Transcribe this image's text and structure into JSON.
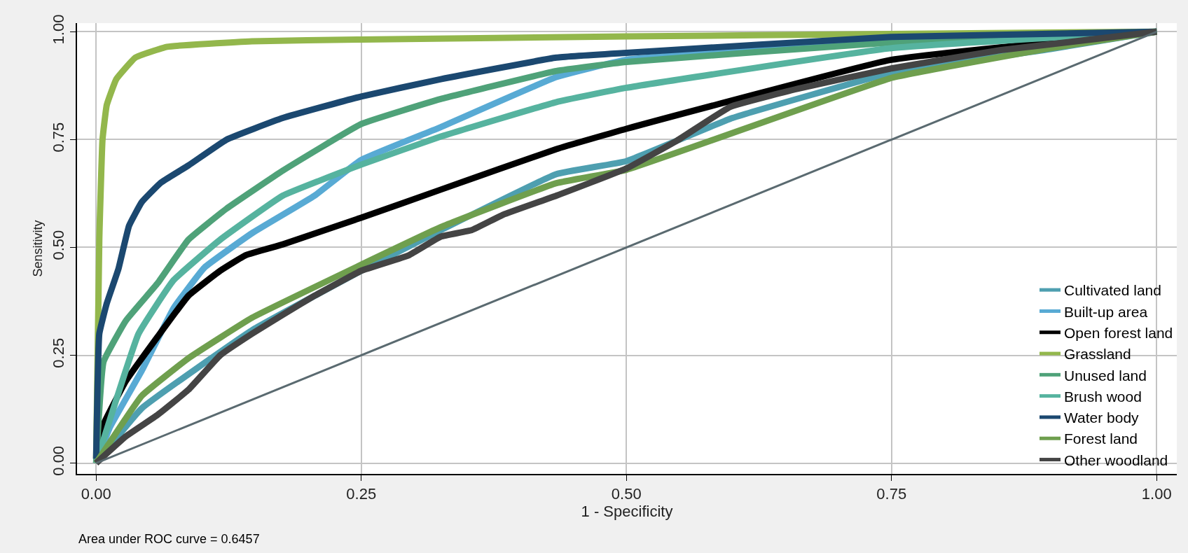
{
  "chart_data": {
    "type": "line",
    "xlabel": "1 - Specificity",
    "ylabel": "Sensitivity",
    "annotations": [
      "Area under ROC curve = 0.6457"
    ],
    "xlim": [
      -0.018,
      1.019
    ],
    "ylim": [
      -0.025,
      1.02
    ],
    "xticks": [
      {
        "value": 0,
        "label": "0.00"
      },
      0.25,
      {
        "value": 0.5,
        "label": "0.50"
      },
      0.75,
      {
        "value": 1,
        "label": "1.00"
      }
    ],
    "yticks": [
      {
        "value": 0,
        "label": "0.00"
      },
      0.25,
      {
        "value": 0.5,
        "label": "0.50"
      },
      0.75,
      {
        "value": 1,
        "label": "1.00"
      }
    ],
    "grid": true,
    "legend": "bottom right",
    "series": [
      {
        "name": "Cultivated land",
        "color": "#4e9fb0",
        "x": [
          0,
          0.043,
          0.147,
          0.25,
          0.325,
          0.434,
          0.5,
          0.6,
          0.75,
          0.9,
          1
        ],
        "values": [
          0,
          0.127,
          0.308,
          0.446,
          0.54,
          0.67,
          0.7,
          0.8,
          0.905,
          0.96,
          1
        ]
      },
      {
        "name": "Built-up area",
        "color": "#58aad4",
        "x": [
          0,
          0.013,
          0.043,
          0.073,
          0.102,
          0.147,
          0.206,
          0.25,
          0.325,
          0.434,
          0.5,
          0.75,
          1
        ],
        "values": [
          0,
          0.083,
          0.214,
          0.359,
          0.453,
          0.533,
          0.62,
          0.703,
          0.779,
          0.895,
          0.935,
          0.978,
          1
        ]
      },
      {
        "name": "Open forest land",
        "color": "#000000",
        "x": [
          0,
          0.007,
          0.028,
          0.058,
          0.087,
          0.117,
          0.141,
          0.176,
          0.25,
          0.325,
          0.434,
          0.5,
          0.75,
          1
        ],
        "values": [
          0,
          0.09,
          0.19,
          0.293,
          0.388,
          0.446,
          0.482,
          0.507,
          0.569,
          0.634,
          0.728,
          0.775,
          0.935,
          1
        ]
      },
      {
        "name": "Grassland",
        "color": "#93b74c",
        "x": [
          0,
          0.003,
          0.006,
          0.01,
          0.019,
          0.037,
          0.067,
          0.147,
          0.25,
          0.5,
          0.75,
          1
        ],
        "values": [
          0.01,
          0.52,
          0.75,
          0.83,
          0.89,
          0.94,
          0.965,
          0.978,
          0.982,
          0.989,
          0.995,
          1
        ]
      },
      {
        "name": "Unused land",
        "color": "#4fa279",
        "x": [
          0,
          0.007,
          0.028,
          0.058,
          0.087,
          0.123,
          0.176,
          0.25,
          0.325,
          0.434,
          0.5,
          0.75,
          1
        ],
        "values": [
          0,
          0.235,
          0.33,
          0.417,
          0.518,
          0.59,
          0.678,
          0.786,
          0.844,
          0.909,
          0.93,
          0.975,
          1
        ]
      },
      {
        "name": "Brush wood",
        "color": "#56b39f",
        "x": [
          0,
          0.04,
          0.073,
          0.117,
          0.176,
          0.25,
          0.325,
          0.434,
          0.5,
          0.75,
          1
        ],
        "values": [
          0,
          0.3,
          0.424,
          0.518,
          0.62,
          0.692,
          0.757,
          0.837,
          0.87,
          0.962,
          1
        ]
      },
      {
        "name": "Water body",
        "color": "#1b4870",
        "x": [
          0,
          0.003,
          0.01,
          0.021,
          0.031,
          0.043,
          0.061,
          0.087,
          0.123,
          0.176,
          0.25,
          0.325,
          0.434,
          0.5,
          0.75,
          1
        ],
        "values": [
          0.01,
          0.3,
          0.37,
          0.45,
          0.55,
          0.605,
          0.65,
          0.69,
          0.75,
          0.8,
          0.85,
          0.89,
          0.94,
          0.951,
          0.988,
          1
        ]
      },
      {
        "name": "Forest land",
        "color": "#6f9f4e",
        "x": [
          0,
          0.043,
          0.087,
          0.147,
          0.25,
          0.325,
          0.434,
          0.5,
          0.75,
          0.9,
          1
        ],
        "values": [
          0,
          0.156,
          0.243,
          0.337,
          0.46,
          0.547,
          0.649,
          0.68,
          0.893,
          0.962,
          1
        ]
      },
      {
        "name": "Other woodland",
        "color": "#444444",
        "x": [
          0,
          0.028,
          0.058,
          0.087,
          0.117,
          0.147,
          0.176,
          0.206,
          0.25,
          0.295,
          0.325,
          0.354,
          0.384,
          0.434,
          0.5,
          0.548,
          0.598,
          0.662,
          0.75,
          0.852,
          1
        ],
        "values": [
          0,
          0.062,
          0.112,
          0.17,
          0.25,
          0.3,
          0.344,
          0.388,
          0.446,
          0.482,
          0.525,
          0.54,
          0.576,
          0.62,
          0.683,
          0.748,
          0.826,
          0.868,
          0.915,
          0.957,
          1
        ]
      },
      {
        "color": "#5a6a70",
        "x": [
          0,
          1
        ],
        "values": [
          0,
          1
        ]
      }
    ]
  }
}
